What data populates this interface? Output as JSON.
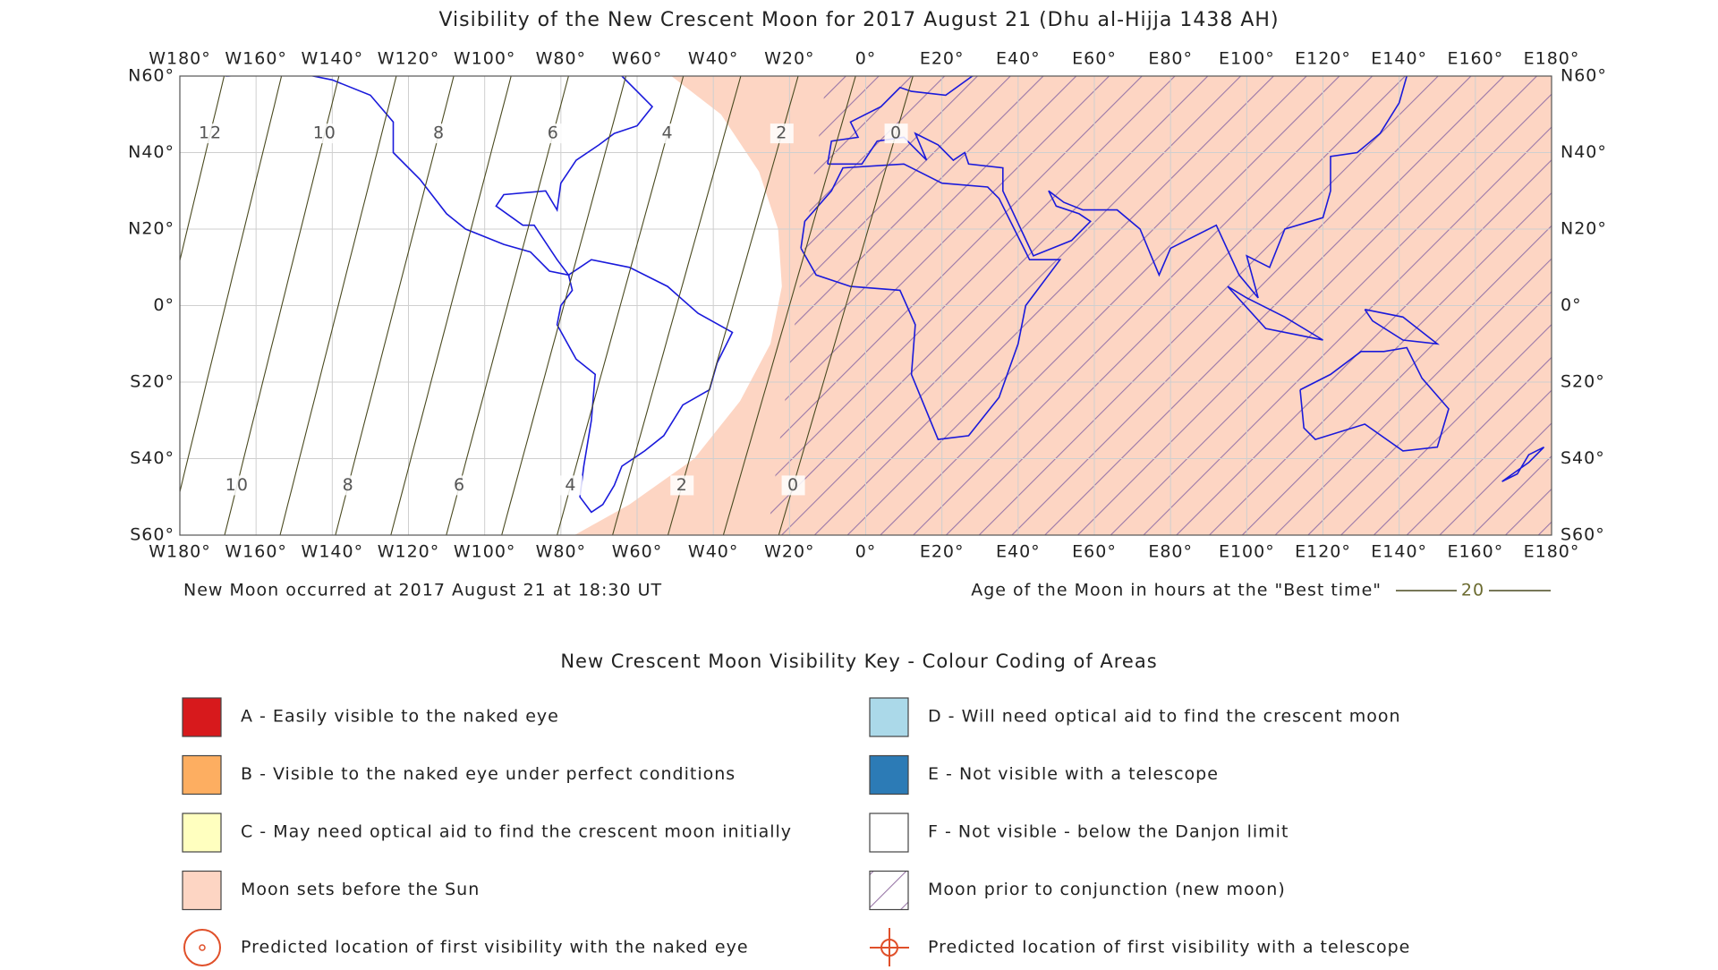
{
  "title": "Visibility of the New Crescent Moon for 2017 August 21 (Dhu al-Hijja 1438 AH)",
  "map": {
    "longitude_labels": [
      "W180°",
      "W160°",
      "W140°",
      "W120°",
      "W100°",
      "W80°",
      "W60°",
      "W40°",
      "W20°",
      "0°",
      "E20°",
      "E40°",
      "E60°",
      "E80°",
      "E100°",
      "E120°",
      "E140°",
      "E160°",
      "E180°"
    ],
    "latitude_labels": [
      "N60°",
      "N40°",
      "N20°",
      "0°",
      "S20°",
      "S40°",
      "S60°"
    ],
    "contour_labels_north": [
      "12",
      "10",
      "8",
      "6",
      "4",
      "2",
      "0"
    ],
    "contour_labels_south": [
      "10",
      "8",
      "6",
      "4",
      "2",
      "0"
    ]
  },
  "notes": {
    "new_moon": "New Moon occurred at 2017 August 21 at 18:30 UT",
    "age_legend": "Age of the Moon in hours at the \"Best time\"",
    "age_legend_sample": "20"
  },
  "key": {
    "title": "New Crescent Moon Visibility Key - Colour Coding of Areas",
    "items": [
      {
        "label": "A - Easily visible to the naked eye",
        "color": "#d7191c"
      },
      {
        "label": "D - Will need optical aid to find the crescent moon",
        "color": "#abd9e9"
      },
      {
        "label": "B - Visible to the naked eye under perfect conditions",
        "color": "#fdae61"
      },
      {
        "label": "E - Not visible with a telescope",
        "color": "#2c7bb6"
      },
      {
        "label": "C - May need optical aid to find the crescent moon initially",
        "color": "#ffffbf"
      },
      {
        "label": "F - Not visible - below the Danjon limit",
        "color": "#ffffff"
      },
      {
        "label": "Moon sets before the Sun",
        "color": "#fdd5c3"
      },
      {
        "label": "Moon prior to conjunction (new moon)",
        "color": "hatch"
      },
      {
        "label": "Predicted location of first visibility with the naked eye",
        "color": "circle"
      },
      {
        "label": "Predicted location of first visibility with a telescope",
        "color": "cross"
      }
    ]
  }
}
